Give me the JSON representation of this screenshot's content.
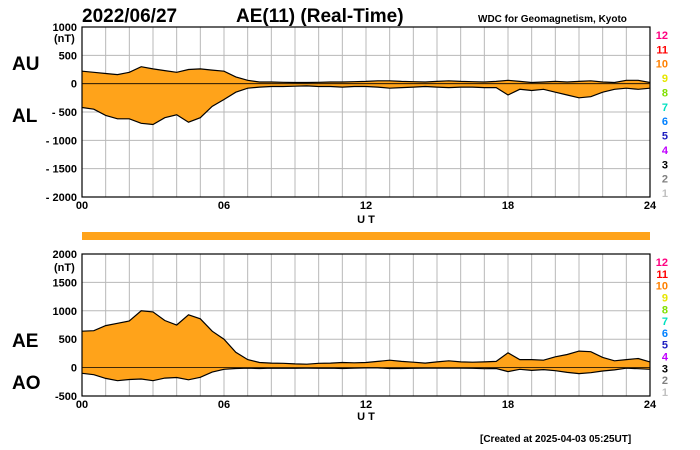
{
  "header": {
    "date": "2022/06/27",
    "title": "AE(11) (Real-Time)",
    "source": "WDC for Geomagnetism, Kyoto"
  },
  "footer": {
    "created": "[Created at 2025-04-03 05:25UT]"
  },
  "legend": {
    "items": [
      {
        "label": "12",
        "color": "#ff0080"
      },
      {
        "label": "11",
        "color": "#ff0000"
      },
      {
        "label": "10",
        "color": "#ff8000"
      },
      {
        "label": "9",
        "color": "#e6e600"
      },
      {
        "label": "8",
        "color": "#80e000"
      },
      {
        "label": "7",
        "color": "#00e0c0"
      },
      {
        "label": "6",
        "color": "#0080ff"
      },
      {
        "label": "5",
        "color": "#2020c0"
      },
      {
        "label": "4",
        "color": "#c000ff"
      },
      {
        "label": "3",
        "color": "#000000"
      },
      {
        "label": "2",
        "color": "#808080"
      },
      {
        "label": "1",
        "color": "#c0c0c0"
      }
    ]
  },
  "colors": {
    "fill": "#ffa31a",
    "bar": "#ffa31a",
    "grid": "#b8b8b8",
    "line": "#000000"
  },
  "chart_data": [
    {
      "type": "area",
      "unit": "(nT)",
      "xlabel": "U T",
      "x_ticks": [
        "00",
        "06",
        "12",
        "18",
        "24"
      ],
      "xlim": [
        0,
        24
      ],
      "ylim": [
        -2000,
        1000
      ],
      "y_ticks": [
        "1000",
        "500",
        "0",
        "- 500",
        "- 1000",
        "- 1500",
        "- 2000"
      ],
      "upper_label": "AU",
      "lower_label": "AL",
      "x": [
        0,
        0.5,
        1,
        1.5,
        2,
        2.5,
        3,
        3.5,
        4,
        4.5,
        5,
        5.5,
        6,
        6.5,
        7,
        7.5,
        8,
        8.5,
        9,
        9.5,
        10,
        10.5,
        11,
        11.5,
        12,
        12.5,
        13,
        13.5,
        14,
        14.5,
        15,
        15.5,
        16,
        16.5,
        17,
        17.5,
        18,
        18.5,
        19,
        19.5,
        20,
        20.5,
        21,
        21.5,
        22,
        22.5,
        23,
        23.5,
        24
      ],
      "series": [
        {
          "name": "AU",
          "values": [
            220,
            200,
            180,
            160,
            200,
            300,
            260,
            230,
            200,
            250,
            260,
            240,
            220,
            120,
            60,
            30,
            30,
            25,
            20,
            20,
            25,
            30,
            30,
            35,
            40,
            50,
            50,
            40,
            35,
            30,
            40,
            50,
            40,
            35,
            30,
            40,
            60,
            40,
            20,
            30,
            40,
            30,
            40,
            50,
            30,
            20,
            60,
            60,
            20
          ]
        },
        {
          "name": "AL",
          "values": [
            -420,
            -450,
            -560,
            -620,
            -620,
            -700,
            -720,
            -600,
            -550,
            -680,
            -600,
            -400,
            -280,
            -150,
            -80,
            -60,
            -50,
            -50,
            -45,
            -40,
            -50,
            -50,
            -60,
            -50,
            -50,
            -60,
            -80,
            -70,
            -60,
            -50,
            -60,
            -70,
            -60,
            -60,
            -70,
            -70,
            -200,
            -100,
            -120,
            -100,
            -150,
            -200,
            -250,
            -230,
            -150,
            -100,
            -80,
            -100,
            -80
          ]
        }
      ]
    },
    {
      "type": "area",
      "unit": "(nT)",
      "xlabel": "U T",
      "x_ticks": [
        "00",
        "06",
        "12",
        "18",
        "24"
      ],
      "xlim": [
        0,
        24
      ],
      "ylim": [
        -500,
        2000
      ],
      "y_ticks": [
        "2000",
        "1500",
        "1000",
        "500",
        "0",
        "-500"
      ],
      "upper_label": "AE",
      "lower_label": "AO",
      "x": [
        0,
        0.5,
        1,
        1.5,
        2,
        2.5,
        3,
        3.5,
        4,
        4.5,
        5,
        5.5,
        6,
        6.5,
        7,
        7.5,
        8,
        8.5,
        9,
        9.5,
        10,
        10.5,
        11,
        11.5,
        12,
        12.5,
        13,
        13.5,
        14,
        14.5,
        15,
        15.5,
        16,
        16.5,
        17,
        17.5,
        18,
        18.5,
        19,
        19.5,
        20,
        20.5,
        21,
        21.5,
        22,
        22.5,
        23,
        23.5,
        24
      ],
      "series": [
        {
          "name": "AE",
          "values": [
            640,
            650,
            740,
            780,
            820,
            1000,
            980,
            830,
            750,
            930,
            860,
            640,
            500,
            270,
            140,
            90,
            80,
            75,
            65,
            60,
            75,
            80,
            90,
            85,
            90,
            110,
            130,
            110,
            95,
            80,
            100,
            120,
            100,
            95,
            100,
            110,
            260,
            140,
            140,
            130,
            190,
            230,
            290,
            280,
            180,
            120,
            140,
            160,
            100
          ]
        },
        {
          "name": "AO",
          "values": [
            -100,
            -125,
            -190,
            -230,
            -210,
            -200,
            -230,
            -185,
            -175,
            -215,
            -170,
            -80,
            -30,
            -15,
            -10,
            -15,
            -10,
            -12,
            -12,
            -10,
            -12,
            -10,
            -15,
            -8,
            -5,
            -5,
            -15,
            -15,
            -12,
            -10,
            -10,
            -10,
            -10,
            -12,
            -20,
            -15,
            -70,
            -30,
            -50,
            -35,
            -55,
            -85,
            -105,
            -90,
            -60,
            -40,
            -10,
            -20,
            -30
          ]
        }
      ]
    }
  ]
}
